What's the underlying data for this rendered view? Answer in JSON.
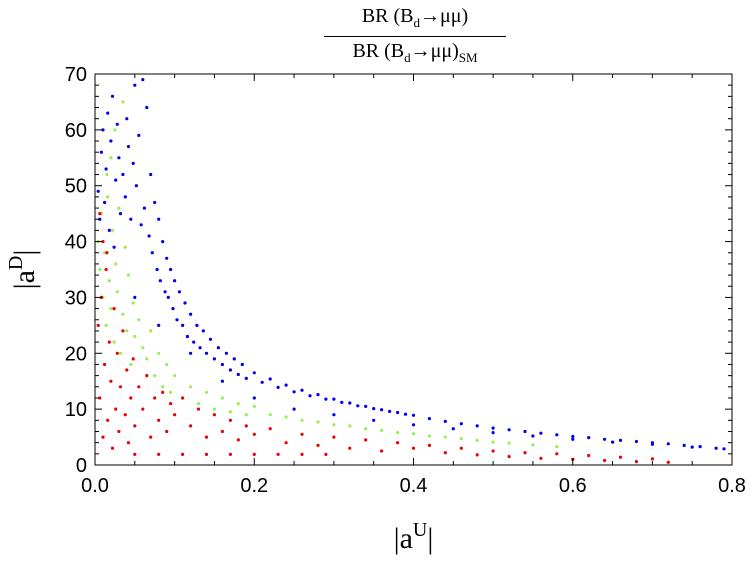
{
  "chart_data": {
    "type": "scatter",
    "title": {
      "numerator": "BR (B_d→μμ)",
      "denominator": "BR (B_d→μμ)_SM"
    },
    "xlabel": "|a^U|",
    "ylabel": "|a^D|",
    "xlim": [
      0.0,
      0.8
    ],
    "ylim": [
      0,
      70
    ],
    "xticks": [
      "0.0",
      "0.2",
      "0.4",
      "0.6",
      "0.8"
    ],
    "yticks": [
      "0",
      "10",
      "20",
      "30",
      "40",
      "50",
      "60",
      "70"
    ],
    "grid": false,
    "legend": "none",
    "series": [
      {
        "color": "#0000ee",
        "points": [
          [
            0.004,
            49
          ],
          [
            0.006,
            44
          ],
          [
            0.008,
            56
          ],
          [
            0.01,
            60
          ],
          [
            0.012,
            47
          ],
          [
            0.014,
            53
          ],
          [
            0.016,
            63
          ],
          [
            0.018,
            42
          ],
          [
            0.02,
            58
          ],
          [
            0.022,
            66
          ],
          [
            0.024,
            39
          ],
          [
            0.026,
            51
          ],
          [
            0.028,
            61
          ],
          [
            0.03,
            55
          ],
          [
            0.032,
            45
          ],
          [
            0.035,
            52
          ],
          [
            0.038,
            48
          ],
          [
            0.04,
            62
          ],
          [
            0.042,
            57
          ],
          [
            0.045,
            44
          ],
          [
            0.048,
            54
          ],
          [
            0.05,
            68
          ],
          [
            0.052,
            50
          ],
          [
            0.055,
            59
          ],
          [
            0.058,
            43
          ],
          [
            0.06,
            69
          ],
          [
            0.062,
            46
          ],
          [
            0.065,
            64
          ],
          [
            0.068,
            41
          ],
          [
            0.07,
            52
          ],
          [
            0.072,
            38
          ],
          [
            0.075,
            47
          ],
          [
            0.078,
            35
          ],
          [
            0.08,
            44
          ],
          [
            0.082,
            33
          ],
          [
            0.085,
            40
          ],
          [
            0.088,
            31
          ],
          [
            0.09,
            37
          ],
          [
            0.092,
            30
          ],
          [
            0.095,
            35
          ],
          [
            0.098,
            28
          ],
          [
            0.1,
            33
          ],
          [
            0.103,
            26
          ],
          [
            0.106,
            31
          ],
          [
            0.11,
            25
          ],
          [
            0.113,
            29
          ],
          [
            0.116,
            23
          ],
          [
            0.12,
            27
          ],
          [
            0.124,
            22
          ],
          [
            0.128,
            25
          ],
          [
            0.132,
            21
          ],
          [
            0.136,
            24
          ],
          [
            0.14,
            20
          ],
          [
            0.145,
            22.5
          ],
          [
            0.15,
            19
          ],
          [
            0.155,
            21
          ],
          [
            0.16,
            18
          ],
          [
            0.165,
            20
          ],
          [
            0.17,
            17
          ],
          [
            0.175,
            19
          ],
          [
            0.18,
            16.2
          ],
          [
            0.185,
            18
          ],
          [
            0.19,
            15.5
          ],
          [
            0.2,
            16.5
          ],
          [
            0.21,
            14.8
          ],
          [
            0.22,
            15.4
          ],
          [
            0.23,
            13.9
          ],
          [
            0.24,
            14.3
          ],
          [
            0.25,
            13.1
          ],
          [
            0.26,
            13.4
          ],
          [
            0.27,
            12.4
          ],
          [
            0.28,
            12.6
          ],
          [
            0.29,
            11.8
          ],
          [
            0.3,
            11.8
          ],
          [
            0.31,
            11.2
          ],
          [
            0.32,
            11.1
          ],
          [
            0.33,
            10.6
          ],
          [
            0.34,
            10.5
          ],
          [
            0.35,
            10.1
          ],
          [
            0.36,
            9.9
          ],
          [
            0.37,
            9.6
          ],
          [
            0.38,
            9.4
          ],
          [
            0.39,
            9.1
          ],
          [
            0.4,
            8.9
          ],
          [
            0.42,
            8.3
          ],
          [
            0.44,
            7.8
          ],
          [
            0.46,
            7.4
          ],
          [
            0.48,
            7.0
          ],
          [
            0.5,
            6.6
          ],
          [
            0.52,
            6.3
          ],
          [
            0.54,
            6.0
          ],
          [
            0.56,
            5.7
          ],
          [
            0.58,
            5.4
          ],
          [
            0.6,
            5.1
          ],
          [
            0.62,
            4.9
          ],
          [
            0.64,
            4.6
          ],
          [
            0.66,
            4.4
          ],
          [
            0.68,
            4.2
          ],
          [
            0.7,
            4.0
          ],
          [
            0.72,
            3.8
          ],
          [
            0.74,
            3.5
          ],
          [
            0.76,
            3.3
          ],
          [
            0.78,
            3.0
          ],
          [
            0.79,
            2.9
          ],
          [
            0.05,
            30
          ],
          [
            0.08,
            25
          ],
          [
            0.12,
            20
          ],
          [
            0.16,
            15
          ],
          [
            0.2,
            12
          ],
          [
            0.25,
            10
          ],
          [
            0.3,
            9
          ],
          [
            0.35,
            8
          ],
          [
            0.4,
            7.2
          ],
          [
            0.45,
            6.5
          ],
          [
            0.5,
            5.8
          ],
          [
            0.55,
            5.2
          ],
          [
            0.6,
            4.6
          ],
          [
            0.65,
            4.1
          ],
          [
            0.7,
            3.7
          ],
          [
            0.75,
            3.2
          ]
        ]
      },
      {
        "color": "#99ee55",
        "points": [
          [
            0.004,
            40
          ],
          [
            0.006,
            35
          ],
          [
            0.008,
            45
          ],
          [
            0.01,
            30
          ],
          [
            0.012,
            38
          ],
          [
            0.014,
            25
          ],
          [
            0.016,
            48
          ],
          [
            0.018,
            33
          ],
          [
            0.02,
            28
          ],
          [
            0.022,
            42
          ],
          [
            0.024,
            22
          ],
          [
            0.026,
            36
          ],
          [
            0.028,
            31
          ],
          [
            0.03,
            46
          ],
          [
            0.032,
            20
          ],
          [
            0.035,
            27
          ],
          [
            0.038,
            39
          ],
          [
            0.04,
            24
          ],
          [
            0.042,
            34
          ],
          [
            0.045,
            18
          ],
          [
            0.048,
            29
          ],
          [
            0.05,
            23
          ],
          [
            0.055,
            26
          ],
          [
            0.06,
            21
          ],
          [
            0.065,
            19
          ],
          [
            0.07,
            24
          ],
          [
            0.075,
            16
          ],
          [
            0.08,
            20
          ],
          [
            0.085,
            14
          ],
          [
            0.09,
            18
          ],
          [
            0.095,
            13
          ],
          [
            0.1,
            16
          ],
          [
            0.11,
            12
          ],
          [
            0.12,
            14
          ],
          [
            0.13,
            11
          ],
          [
            0.14,
            13
          ],
          [
            0.15,
            10
          ],
          [
            0.16,
            12
          ],
          [
            0.17,
            9.5
          ],
          [
            0.18,
            11
          ],
          [
            0.19,
            9
          ],
          [
            0.2,
            10.5
          ],
          [
            0.22,
            9
          ],
          [
            0.24,
            8.6
          ],
          [
            0.26,
            8
          ],
          [
            0.28,
            7.7
          ],
          [
            0.3,
            7.2
          ],
          [
            0.32,
            7
          ],
          [
            0.34,
            6.5
          ],
          [
            0.36,
            6.2
          ],
          [
            0.38,
            5.8
          ],
          [
            0.4,
            5.6
          ],
          [
            0.42,
            5.2
          ],
          [
            0.44,
            5
          ],
          [
            0.46,
            4.7
          ],
          [
            0.48,
            4.4
          ],
          [
            0.5,
            4.1
          ],
          [
            0.52,
            3.9
          ],
          [
            0.55,
            3.6
          ],
          [
            0.58,
            3.3
          ],
          [
            0.02,
            55
          ],
          [
            0.025,
            60
          ],
          [
            0.015,
            52
          ],
          [
            0.035,
            65
          ]
        ]
      },
      {
        "color": "#ee0000",
        "points": [
          [
            0.004,
            25
          ],
          [
            0.006,
            12
          ],
          [
            0.008,
            30
          ],
          [
            0.01,
            5
          ],
          [
            0.012,
            18
          ],
          [
            0.014,
            35
          ],
          [
            0.016,
            8
          ],
          [
            0.018,
            22
          ],
          [
            0.02,
            15
          ],
          [
            0.022,
            3
          ],
          [
            0.024,
            28
          ],
          [
            0.026,
            10
          ],
          [
            0.028,
            20
          ],
          [
            0.03,
            6
          ],
          [
            0.032,
            14
          ],
          [
            0.035,
            24
          ],
          [
            0.038,
            9
          ],
          [
            0.04,
            17
          ],
          [
            0.042,
            4
          ],
          [
            0.045,
            12
          ],
          [
            0.048,
            19
          ],
          [
            0.05,
            7
          ],
          [
            0.055,
            14
          ],
          [
            0.06,
            10
          ],
          [
            0.065,
            16
          ],
          [
            0.07,
            5
          ],
          [
            0.075,
            12
          ],
          [
            0.08,
            8
          ],
          [
            0.085,
            13
          ],
          [
            0.09,
            6
          ],
          [
            0.095,
            11
          ],
          [
            0.1,
            9
          ],
          [
            0.11,
            12
          ],
          [
            0.12,
            7
          ],
          [
            0.13,
            10
          ],
          [
            0.14,
            5
          ],
          [
            0.15,
            9
          ],
          [
            0.16,
            6
          ],
          [
            0.17,
            8
          ],
          [
            0.18,
            4.5
          ],
          [
            0.19,
            7
          ],
          [
            0.2,
            5.5
          ],
          [
            0.22,
            6.5
          ],
          [
            0.24,
            4
          ],
          [
            0.26,
            5.5
          ],
          [
            0.28,
            3.5
          ],
          [
            0.3,
            5
          ],
          [
            0.32,
            3
          ],
          [
            0.34,
            4.5
          ],
          [
            0.36,
            2.5
          ],
          [
            0.38,
            4
          ],
          [
            0.4,
            3
          ],
          [
            0.42,
            3.5
          ],
          [
            0.44,
            2.2
          ],
          [
            0.46,
            3
          ],
          [
            0.48,
            1.8
          ],
          [
            0.5,
            2.5
          ],
          [
            0.52,
            1.5
          ],
          [
            0.54,
            2.2
          ],
          [
            0.56,
            1.2
          ],
          [
            0.58,
            2
          ],
          [
            0.6,
            1
          ],
          [
            0.62,
            1.7
          ],
          [
            0.64,
            0.8
          ],
          [
            0.66,
            1.4
          ],
          [
            0.68,
            0.6
          ],
          [
            0.7,
            1.1
          ],
          [
            0.72,
            0.5
          ],
          [
            0.05,
            1.9
          ],
          [
            0.08,
            1.9
          ],
          [
            0.11,
            1.9
          ],
          [
            0.14,
            1.9
          ],
          [
            0.17,
            1.9
          ],
          [
            0.2,
            1.9
          ],
          [
            0.23,
            1.9
          ],
          [
            0.26,
            1.9
          ],
          [
            0.29,
            1.9
          ],
          [
            0.006,
            45
          ],
          [
            0.01,
            40
          ],
          [
            0.015,
            38
          ]
        ]
      }
    ]
  }
}
